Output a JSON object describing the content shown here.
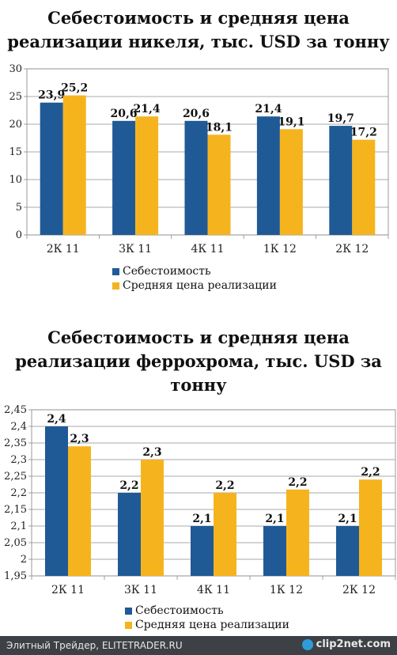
{
  "charts": [
    {
      "title_lines": [
        "Себестоимость и средняя цена",
        "реализации никеля, тыс. USD за тонну"
      ]
    },
    {
      "title_lines": [
        "Себестоимость и средняя цена",
        "реализации феррохрома, тыс. USD за",
        "тонну"
      ]
    }
  ],
  "chart_data": [
    {
      "type": "bar",
      "title": "Себестоимость и средняя цена реализации никеля, тыс. USD за тонну",
      "categories": [
        "2К 11",
        "3К 11",
        "4К 11",
        "1К 12",
        "2К 12"
      ],
      "series": [
        {
          "name": "Себестоимость",
          "values": [
            23.9,
            20.6,
            20.6,
            21.4,
            19.7
          ],
          "labels": [
            "23,9",
            "20,6",
            "20,6",
            "21,4",
            "19,7"
          ],
          "color": "#1f5a96"
        },
        {
          "name": "Средняя цена реализации",
          "values": [
            25.2,
            21.4,
            18.1,
            19.1,
            17.2
          ],
          "labels": [
            "25,2",
            "21,4",
            "18,1",
            "19,1",
            "17,2"
          ],
          "color": "#f5b41e"
        }
      ],
      "ylim": [
        0,
        30
      ],
      "yticks": [
        0,
        5,
        10,
        15,
        20,
        25,
        30
      ],
      "ytick_labels": [
        "0",
        "5",
        "10",
        "15",
        "20",
        "25",
        "30"
      ],
      "grid": true,
      "legend_position": "bottom"
    },
    {
      "type": "bar",
      "title": "Себестоимость и средняя цена реализации феррохрома, тыс. USD за тонну",
      "categories": [
        "2К 11",
        "3К 11",
        "4К 11",
        "1К 12",
        "2К 12"
      ],
      "series": [
        {
          "name": "Себестоимость",
          "values": [
            2.4,
            2.2,
            2.1,
            2.1,
            2.1
          ],
          "labels": [
            "2,4",
            "2,2",
            "2,1",
            "2,1",
            "2,1"
          ],
          "color": "#1f5a96"
        },
        {
          "name": "Средняя цена реализации",
          "values": [
            2.34,
            2.3,
            2.2,
            2.21,
            2.24
          ],
          "labels": [
            "2,3",
            "2,3",
            "2,2",
            "2,2",
            "2,2"
          ],
          "color": "#f5b41e"
        }
      ],
      "ylim": [
        1.95,
        2.45
      ],
      "yticks": [
        1.95,
        2.0,
        2.05,
        2.1,
        2.15,
        2.2,
        2.25,
        2.3,
        2.35,
        2.4,
        2.45
      ],
      "ytick_labels": [
        "1,95",
        "2",
        "2,05",
        "2,1",
        "2,15",
        "2,2",
        "2,25",
        "2,3",
        "2,35",
        "2,4",
        "2,45"
      ],
      "grid": true,
      "legend_position": "bottom"
    }
  ],
  "footer": {
    "text": "Элитный Трейдер, ELITETRADER.RU",
    "logo": "clip2net.com"
  }
}
